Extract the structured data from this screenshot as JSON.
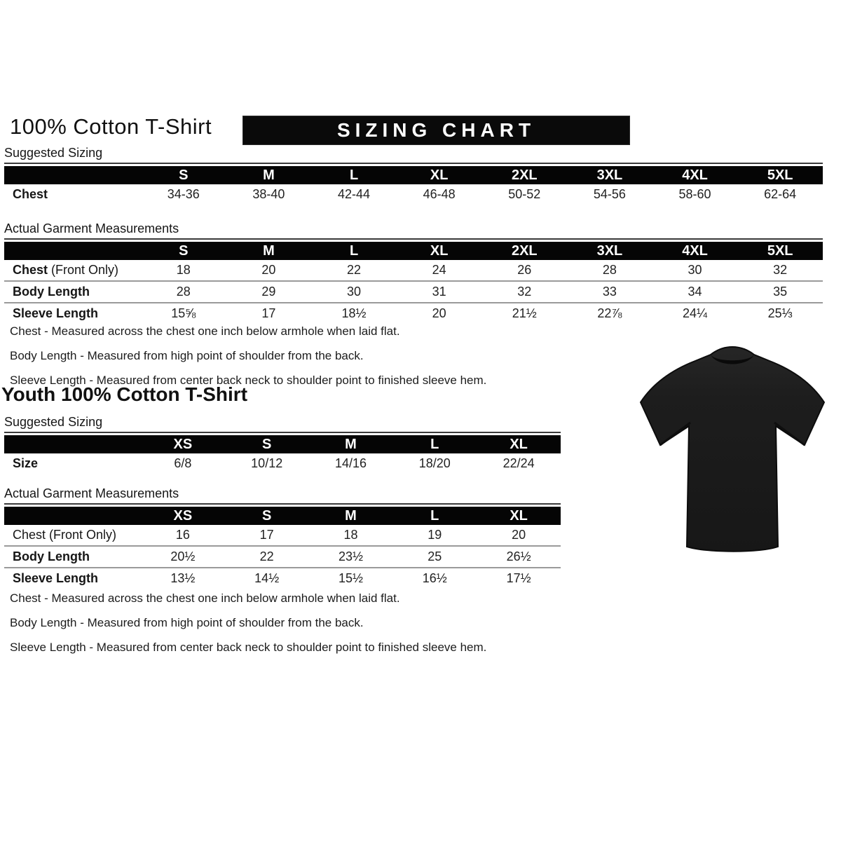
{
  "header": {
    "title": "100% Cotton T-Shirt",
    "banner": "SIZING CHART"
  },
  "adult": {
    "suggested": {
      "label": "Suggested Sizing",
      "columns": [
        "S",
        "M",
        "L",
        "XL",
        "2XL",
        "3XL",
        "4XL",
        "5XL"
      ],
      "rows": [
        {
          "label": "Chest",
          "suffix": "",
          "values": [
            "34-36",
            "38-40",
            "42-44",
            "46-48",
            "50-52",
            "54-56",
            "58-60",
            "62-64"
          ]
        }
      ]
    },
    "measurements": {
      "label": "Actual Garment Measurements",
      "columns": [
        "S",
        "M",
        "L",
        "XL",
        "2XL",
        "3XL",
        "4XL",
        "5XL"
      ],
      "rows": [
        {
          "label": "Chest",
          "suffix": "(Front Only)",
          "values": [
            "18",
            "20",
            "22",
            "24",
            "26",
            "28",
            "30",
            "32"
          ]
        },
        {
          "label": "Body Length",
          "suffix": "",
          "values": [
            "28",
            "29",
            "30",
            "31",
            "32",
            "33",
            "34",
            "35"
          ]
        },
        {
          "label": "Sleeve Length",
          "suffix": "",
          "values": [
            "15⅝",
            "17",
            "18½",
            "20",
            "21½",
            "22⅞",
            "24¼",
            "25⅓"
          ]
        }
      ]
    },
    "notes": [
      "Chest - Measured across the chest one inch below armhole when laid flat.",
      "Body Length - Measured from high point of shoulder from the back.",
      "Sleeve Length - Measured from center back neck to shoulder point to finished sleeve hem."
    ]
  },
  "youth_header": {
    "title": "Youth 100% Cotton T-Shirt"
  },
  "youth": {
    "suggested": {
      "label": "Suggested Sizing",
      "columns": [
        "XS",
        "S",
        "M",
        "L",
        "XL"
      ],
      "rows": [
        {
          "label": "Size",
          "suffix": "",
          "values": [
            "6/8",
            "10/12",
            "14/16",
            "18/20",
            "22/24"
          ]
        }
      ]
    },
    "measurements": {
      "label": "Actual Garment Measurements",
      "columns": [
        "XS",
        "S",
        "M",
        "L",
        "XL"
      ],
      "rows": [
        {
          "label": "Chest (Front Only)",
          "suffix": "",
          "values": [
            "16",
            "17",
            "18",
            "19",
            "20"
          ]
        },
        {
          "label": "Body Length",
          "suffix": "",
          "values": [
            "20½",
            "22",
            "23½",
            "25",
            "26½"
          ]
        },
        {
          "label": "Sleeve Length",
          "suffix": "",
          "values": [
            "13½",
            "14½",
            "15½",
            "16½",
            "17½"
          ]
        }
      ]
    },
    "notes": [
      "Chest - Measured across the chest one inch below armhole when laid flat.",
      "Body Length - Measured from high point of shoulder from the back.",
      "Sleeve Length - Measured from center back neck to shoulder point to finished sleeve hem."
    ]
  },
  "image": {
    "name": "black-tshirt-photo",
    "shirt_color": "#1d1d1d",
    "collar_color": "#0a0a0a"
  },
  "colors": {
    "header_bg": "#050505",
    "header_text": "#ffffff",
    "separator": "#9a9a9a",
    "body_text": "#1a1a1a"
  }
}
